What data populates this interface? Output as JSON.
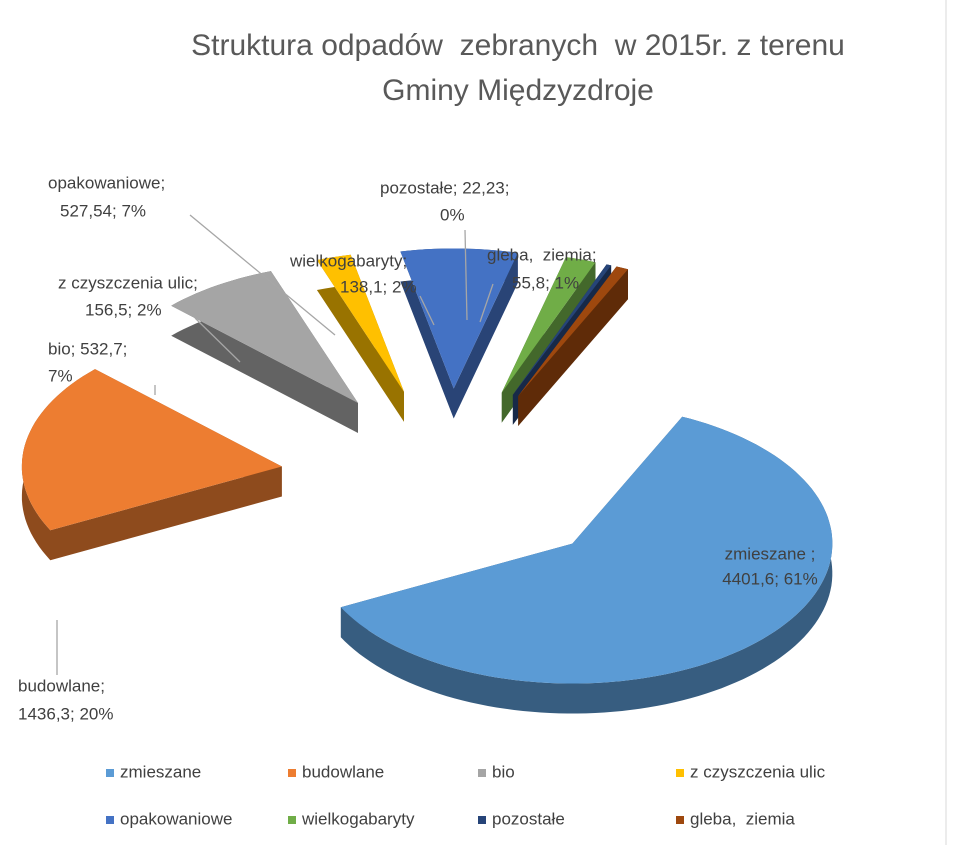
{
  "chart_data": {
    "type": "pie",
    "title": [
      "Struktura odpadów  zebranych  w 2015r. z terenu",
      "Gminy Międzyzdroje"
    ],
    "categories": [
      "zmieszane",
      "budowlane",
      "bio",
      "z czyszczenia ulic",
      "opakowaniowe",
      "wielkogabaryty",
      "pozostałe",
      "gleba,  ziemia"
    ],
    "values": [
      4401.6,
      1436.3,
      532.7,
      156.5,
      527.54,
      138.1,
      22.23,
      55.8
    ],
    "value_labels": [
      [
        "zmieszane ;",
        "4401,6; 61%"
      ],
      [
        "budowlane;",
        "1436,3; 20%"
      ],
      [
        "bio; 532,7;",
        "7%"
      ],
      [
        "z czyszczenia ulic;",
        "156,5; 2%"
      ],
      [
        "opakowaniowe;",
        "527,54; 7%"
      ],
      [
        "wielkogabaryty;",
        "138,1; 2%"
      ],
      [
        "pozostałe; 22,23;",
        "0%"
      ],
      [
        "gleba,  ziemia;",
        "55,8; 1%"
      ]
    ],
    "colors": [
      "#5b9bd5",
      "#ed7d31",
      "#a5a5a5",
      "#ffc000",
      "#4472c4",
      "#70ad47",
      "#264478",
      "#9e480e"
    ],
    "legend": "bottom"
  }
}
